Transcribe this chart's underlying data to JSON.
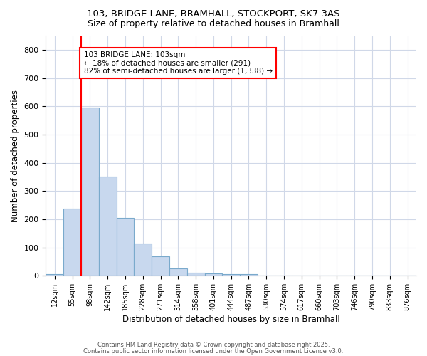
{
  "title1": "103, BRIDGE LANE, BRAMHALL, STOCKPORT, SK7 3AS",
  "title2": "Size of property relative to detached houses in Bramhall",
  "xlabel": "Distribution of detached houses by size in Bramhall",
  "ylabel": "Number of detached properties",
  "bar_labels": [
    "12sqm",
    "55sqm",
    "98sqm",
    "142sqm",
    "185sqm",
    "228sqm",
    "271sqm",
    "314sqm",
    "358sqm",
    "401sqm",
    "444sqm",
    "487sqm",
    "530sqm",
    "574sqm",
    "617sqm",
    "660sqm",
    "703sqm",
    "746sqm",
    "790sqm",
    "833sqm",
    "876sqm"
  ],
  "bar_values": [
    5,
    238,
    595,
    352,
    205,
    113,
    70,
    25,
    10,
    8,
    5,
    7,
    0,
    0,
    0,
    0,
    0,
    0,
    0,
    0,
    0
  ],
  "bar_color": "#c8d8ee",
  "bar_edge_color": "#7aaacc",
  "red_line_x": 2.0,
  "annotation_line1": "103 BRIDGE LANE: 103sqm",
  "annotation_line2": "← 18% of detached houses are smaller (291)",
  "annotation_line3": "82% of semi-detached houses are larger (1,338) →",
  "ylim": [
    0,
    850
  ],
  "yticks": [
    0,
    100,
    200,
    300,
    400,
    500,
    600,
    700,
    800
  ],
  "footer1": "Contains HM Land Registry data © Crown copyright and database right 2025.",
  "footer2": "Contains public sector information licensed under the Open Government Licence v3.0.",
  "background_color": "#ffffff",
  "plot_bg_color": "#ffffff",
  "annotation_box_color": "white",
  "annotation_box_edge": "red",
  "grid_color": "#d0d8e8"
}
